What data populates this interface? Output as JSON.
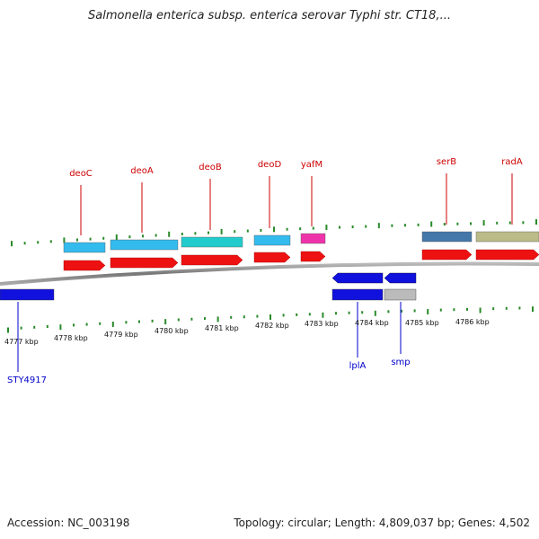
{
  "title": "Salmonella enterica subsp. enterica serovar Typhi str. CT18,...",
  "footer": {
    "accession": "Accession: NC_003198",
    "summary": "Topology: circular; Length: 4,809,037 bp; Genes: 4,502"
  },
  "colors": {
    "forward_gene": "#ee1111",
    "reverse_gene": "#1111dd",
    "label_forward": "#cc0000",
    "label_reverse": "#0000cc",
    "tick": "#2a8a2a",
    "backbone": "#888888"
  },
  "scale_labels": [
    "4777 kbp",
    "4778 kbp",
    "4779 kbp",
    "4780 kbp",
    "4781 kbp",
    "4782 kbp",
    "4783 kbp",
    "4784 kbp",
    "4785 kbp",
    "4786 kbp"
  ],
  "forward_genes": [
    {
      "name": "deoC",
      "upper_color": "#33bbee"
    },
    {
      "name": "deoA",
      "upper_color": "#33bbee"
    },
    {
      "name": "deoB",
      "upper_color": "#22cccc"
    },
    {
      "name": "deoD",
      "upper_color": "#33bbee"
    },
    {
      "name": "yafM",
      "upper_color": "#ee33aa"
    },
    {
      "name": "serB",
      "upper_color": "#4477aa"
    },
    {
      "name": "radA",
      "upper_color": "#bbbb88"
    }
  ],
  "reverse_genes": [
    {
      "name": "STY4917",
      "upper_color": ""
    },
    {
      "name": "lplA",
      "upper_color": "#1111dd"
    },
    {
      "name": "smp",
      "upper_color": "#bbbbbb"
    }
  ]
}
